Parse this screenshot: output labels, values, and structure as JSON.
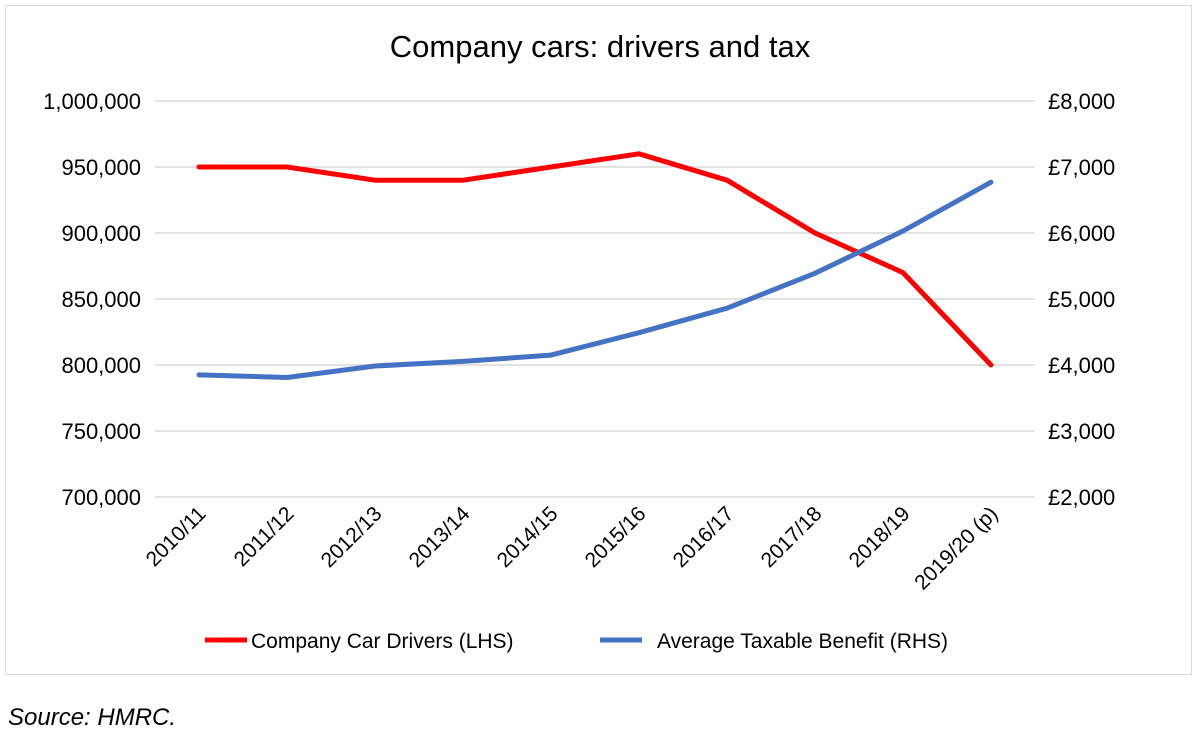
{
  "chart_data": {
    "type": "line",
    "title": "Company cars: drivers and tax",
    "categories": [
      "2010/11",
      "2011/12",
      "2012/13",
      "2013/14",
      "2014/15",
      "2015/16",
      "2016/17",
      "2017/18",
      "2018/19",
      "2019/20 (p)"
    ],
    "series": [
      {
        "name": "Company Car Drivers (LHS)",
        "axis": "left",
        "color": "#ff0000",
        "values": [
          950000,
          950000,
          940000,
          940000,
          950000,
          960000,
          940000,
          900000,
          870000,
          800000
        ]
      },
      {
        "name": "Average Taxable Benefit (RHS)",
        "axis": "right",
        "color": "#4472c4",
        "values": [
          3850,
          3810,
          3985,
          4055,
          4150,
          4490,
          4860,
          5390,
          6030,
          6770
        ]
      }
    ],
    "y_left": {
      "range": [
        700000,
        1000000
      ],
      "ticks": [
        "700,000",
        "750,000",
        "800,000",
        "850,000",
        "900,000",
        "950,000",
        "1,000,000"
      ]
    },
    "y_right": {
      "range": [
        2000,
        8000
      ],
      "ticks": [
        "£2,000",
        "£3,000",
        "£4,000",
        "£5,000",
        "£6,000",
        "£7,000",
        "£8,000"
      ]
    },
    "grid": true,
    "legend": "bottom"
  },
  "source": "Source: HMRC."
}
